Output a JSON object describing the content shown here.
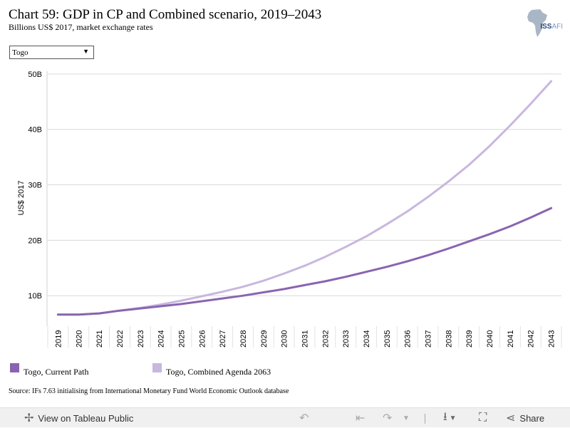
{
  "header": {
    "title": "Chart 59: GDP in CP and Combined scenario, 2019–2043",
    "subtitle": "Billions US$ 2017, market exchange rates"
  },
  "logo": {
    "text_iss": "ISS",
    "text_afr": "AFI"
  },
  "filter": {
    "selected": "Togo"
  },
  "chart_data": {
    "type": "line",
    "x": [
      2019,
      2020,
      2021,
      2022,
      2023,
      2024,
      2025,
      2026,
      2027,
      2028,
      2029,
      2030,
      2031,
      2032,
      2033,
      2034,
      2035,
      2036,
      2037,
      2038,
      2039,
      2040,
      2041,
      2042,
      2043
    ],
    "ylabel": "US$ 2017",
    "ylim": [
      4.5,
      50.5
    ],
    "yticks": [
      10,
      20,
      30,
      40,
      50
    ],
    "ytick_labels": [
      "10B",
      "20B",
      "30B",
      "40B",
      "50B"
    ],
    "grid": true,
    "legend": "bottom",
    "series": [
      {
        "name": "Togo, Current Path",
        "color": "#8a64b0",
        "values": [
          6.6,
          6.6,
          6.8,
          7.3,
          7.7,
          8.1,
          8.5,
          9.0,
          9.5,
          10.0,
          10.6,
          11.2,
          11.9,
          12.6,
          13.4,
          14.3,
          15.2,
          16.2,
          17.3,
          18.5,
          19.8,
          21.1,
          22.5,
          24.1,
          25.8
        ]
      },
      {
        "name": "Togo, Combined Agenda 2063",
        "color": "#c8b7df",
        "values": [
          6.6,
          6.6,
          6.8,
          7.3,
          7.8,
          8.4,
          9.1,
          9.9,
          10.7,
          11.6,
          12.7,
          14.0,
          15.4,
          17.0,
          18.8,
          20.7,
          22.9,
          25.2,
          27.8,
          30.6,
          33.6,
          37.0,
          40.7,
          44.6,
          48.7
        ]
      }
    ]
  },
  "source": "Source: IFs 7.63 initialising from International Monetary Fund World Economic Outlook database",
  "toolbar": {
    "view_label": "View on Tableau Public",
    "share_label": "Share",
    "icons": [
      "tableau-icon",
      "undo-icon",
      "revert-icon",
      "redo-icon",
      "dropdown-icon",
      "download-icon",
      "fullscreen-icon",
      "share-icon"
    ]
  }
}
